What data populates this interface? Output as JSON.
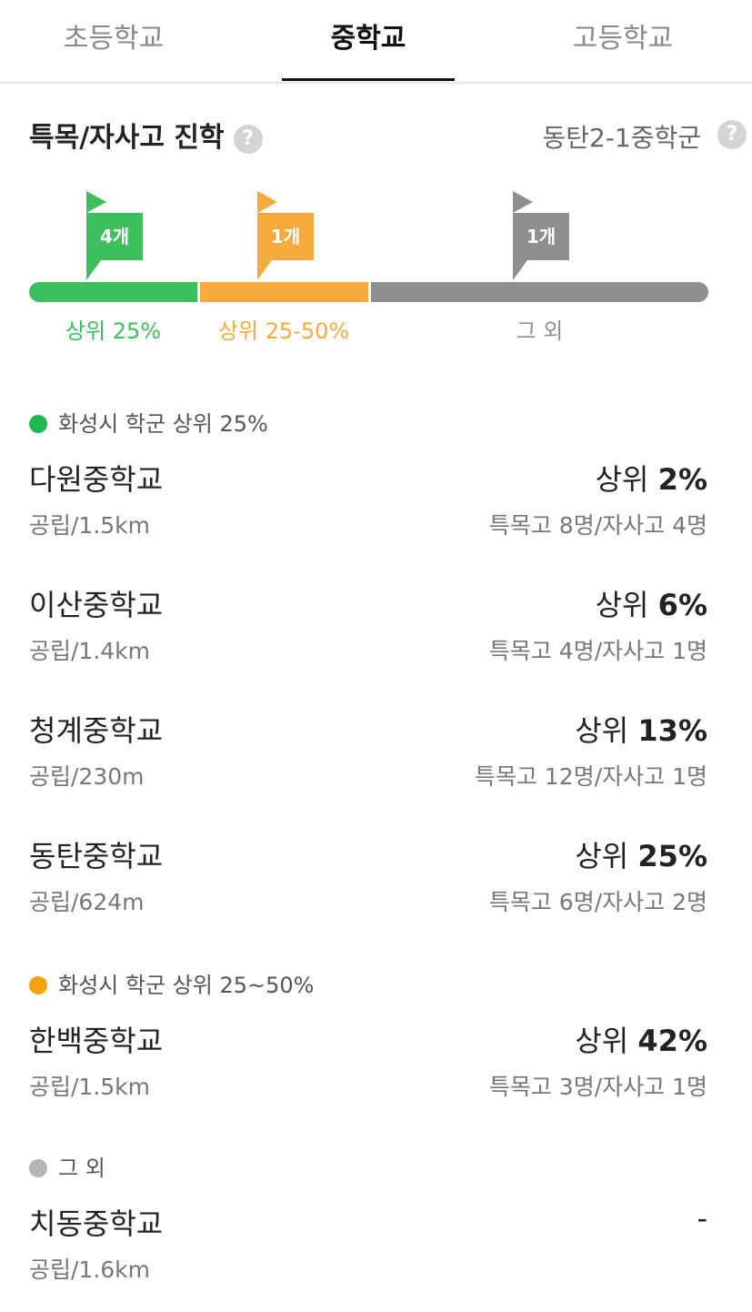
{
  "tabs": [
    {
      "label": "초등학교"
    },
    {
      "label": "중학교"
    },
    {
      "label": "고등학교"
    }
  ],
  "section": {
    "title": "특목/자사고 진학",
    "district": "동탄2-1중학군",
    "help_glyph": "?"
  },
  "colors": {
    "green": "#3dbf5e",
    "orange": "#f5ab3c",
    "gray": "#8f8f8f"
  },
  "distribution": [
    {
      "count": "4개",
      "label": "상위 25%",
      "color": "#3dbf5e"
    },
    {
      "count": "1개",
      "label": "상위 25-50%",
      "color": "#f5ab3c"
    },
    {
      "count": "1개",
      "label": "그 외",
      "color": "#8f8f8f"
    }
  ],
  "groups": [
    {
      "title": "화성시 학군 상위 25%",
      "color": "#1fb94e"
    },
    {
      "title": "화성시 학군 상위 25~50%",
      "color": "#f5a20c"
    },
    {
      "title": "그 외",
      "color": "#b5b5b5"
    }
  ],
  "schools": [
    {
      "name": "다원중학교",
      "meta": "공립/1.5km",
      "rank_prefix": "상위 ",
      "rank": "2%",
      "counts": "특목고 8명/자사고 4명"
    },
    {
      "name": "이산중학교",
      "meta": "공립/1.4km",
      "rank_prefix": "상위 ",
      "rank": "6%",
      "counts": "특목고 4명/자사고 1명"
    },
    {
      "name": "청계중학교",
      "meta": "공립/230m",
      "rank_prefix": "상위 ",
      "rank": "13%",
      "counts": "특목고 12명/자사고 1명"
    },
    {
      "name": "동탄중학교",
      "meta": "공립/624m",
      "rank_prefix": "상위 ",
      "rank": "25%",
      "counts": "특목고 6명/자사고 2명"
    },
    {
      "name": "한백중학교",
      "meta": "공립/1.5km",
      "rank_prefix": "상위 ",
      "rank": "42%",
      "counts": "특목고 3명/자사고 1명"
    },
    {
      "name": "치동중학교",
      "meta": "공립/1.6km",
      "rank_prefix": "",
      "rank": "-",
      "counts": ""
    }
  ]
}
